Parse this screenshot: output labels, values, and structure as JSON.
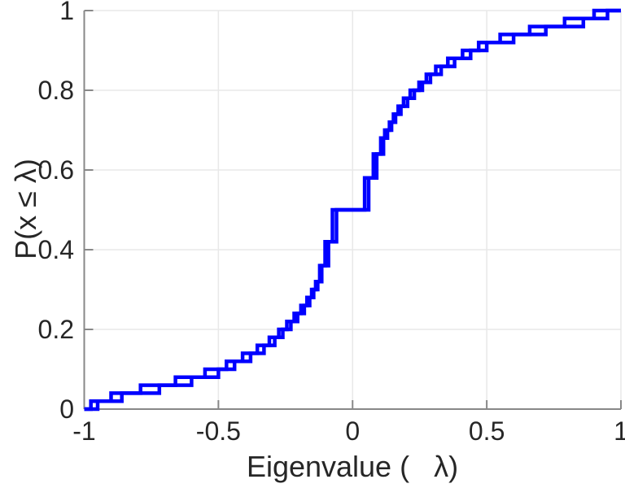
{
  "figure": {
    "background": "#ffffff"
  },
  "chart_data": {
    "type": "line",
    "subtype": "ecdf-step",
    "title": "",
    "xlabel": "Eigenvalue (   λ)",
    "ylabel": "P(x ≤ λ)",
    "xlim": [
      -1,
      1
    ],
    "ylim": [
      0,
      1
    ],
    "xticks": [
      -1,
      -0.5,
      0,
      0.5,
      1
    ],
    "xtick_labels": [
      "-1",
      "-0.5",
      "0",
      "0.5",
      "1"
    ],
    "yticks": [
      0,
      0.2,
      0.4,
      0.6,
      0.8,
      1
    ],
    "ytick_labels": [
      "0",
      "0.2",
      "0.4",
      "0.6",
      "0.8",
      "1"
    ],
    "grid": true,
    "legend": null,
    "line_color": "#0000ff",
    "line_width": 4.5,
    "axis_color": "#888888",
    "grid_color": "#e8e8e8",
    "label_color": "#262626",
    "series": [
      {
        "name": "eigenvalue-ecdf-1",
        "start": [
          -1,
          0
        ],
        "end": [
          1,
          1
        ],
        "jumps": [
          [
            -0.95,
            0.02
          ],
          [
            -0.86,
            0.04
          ],
          [
            -0.72,
            0.06
          ],
          [
            -0.6,
            0.08
          ],
          [
            -0.5,
            0.1
          ],
          [
            -0.44,
            0.12
          ],
          [
            -0.38,
            0.14
          ],
          [
            -0.33,
            0.16
          ],
          [
            -0.29,
            0.18
          ],
          [
            -0.26,
            0.2
          ],
          [
            -0.23,
            0.22
          ],
          [
            -0.205,
            0.24
          ],
          [
            -0.18,
            0.26
          ],
          [
            -0.16,
            0.28
          ],
          [
            -0.145,
            0.3
          ],
          [
            -0.13,
            0.32
          ],
          [
            -0.115,
            0.36
          ],
          [
            -0.09,
            0.42
          ],
          [
            -0.06,
            0.5
          ],
          [
            0.06,
            0.58
          ],
          [
            0.09,
            0.64
          ],
          [
            0.115,
            0.68
          ],
          [
            0.13,
            0.7
          ],
          [
            0.145,
            0.72
          ],
          [
            0.16,
            0.74
          ],
          [
            0.18,
            0.76
          ],
          [
            0.205,
            0.78
          ],
          [
            0.23,
            0.8
          ],
          [
            0.26,
            0.82
          ],
          [
            0.29,
            0.84
          ],
          [
            0.33,
            0.86
          ],
          [
            0.38,
            0.88
          ],
          [
            0.44,
            0.9
          ],
          [
            0.5,
            0.92
          ],
          [
            0.6,
            0.94
          ],
          [
            0.72,
            0.96
          ],
          [
            0.86,
            0.98
          ],
          [
            0.95,
            1.0
          ]
        ]
      },
      {
        "name": "eigenvalue-ecdf-2",
        "start": [
          -1,
          0
        ],
        "end": [
          1,
          1
        ],
        "jumps": [
          [
            -0.975,
            0.02
          ],
          [
            -0.9,
            0.04
          ],
          [
            -0.79,
            0.06
          ],
          [
            -0.66,
            0.08
          ],
          [
            -0.55,
            0.1
          ],
          [
            -0.47,
            0.12
          ],
          [
            -0.41,
            0.14
          ],
          [
            -0.355,
            0.16
          ],
          [
            -0.31,
            0.18
          ],
          [
            -0.275,
            0.2
          ],
          [
            -0.245,
            0.22
          ],
          [
            -0.2175,
            0.24
          ],
          [
            -0.1925,
            0.26
          ],
          [
            -0.17,
            0.28
          ],
          [
            -0.1525,
            0.3
          ],
          [
            -0.1375,
            0.32
          ],
          [
            -0.1225,
            0.36
          ],
          [
            -0.1025,
            0.42
          ],
          [
            -0.075,
            0.5
          ],
          [
            0.045,
            0.58
          ],
          [
            0.0775,
            0.64
          ],
          [
            0.105,
            0.68
          ],
          [
            0.12,
            0.7
          ],
          [
            0.1375,
            0.72
          ],
          [
            0.1525,
            0.74
          ],
          [
            0.17,
            0.76
          ],
          [
            0.19,
            0.78
          ],
          [
            0.215,
            0.8
          ],
          [
            0.2475,
            0.82
          ],
          [
            0.275,
            0.84
          ],
          [
            0.31,
            0.86
          ],
          [
            0.355,
            0.88
          ],
          [
            0.41,
            0.9
          ],
          [
            0.47,
            0.92
          ],
          [
            0.55,
            0.94
          ],
          [
            0.66,
            0.96
          ],
          [
            0.79,
            0.98
          ],
          [
            0.9,
            1.0
          ]
        ]
      }
    ]
  }
}
